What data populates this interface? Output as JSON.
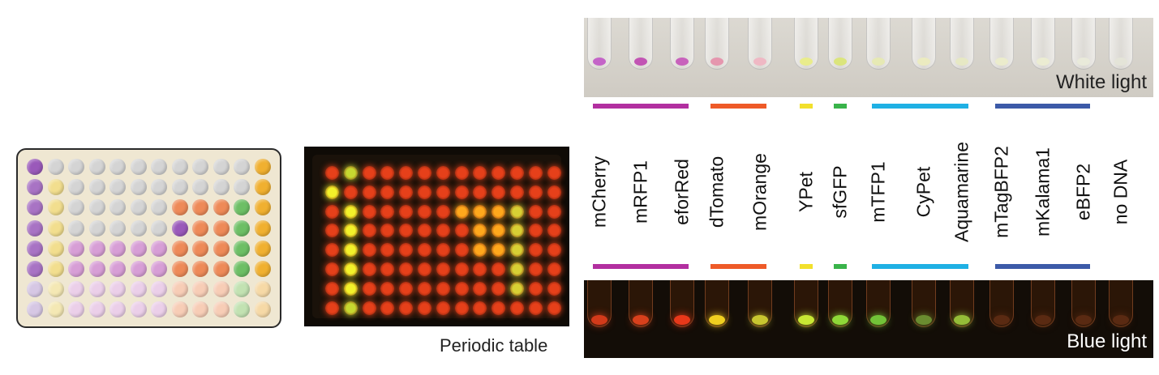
{
  "caption": "Periodic table",
  "white_light_label": "White light",
  "blue_light_label": "Blue light",
  "tubes": [
    {
      "name": "mCherry",
      "white": "#c464c8",
      "blue": "#d23a1a"
    },
    {
      "name": "mRFP1",
      "white": "#c254b4",
      "blue": "#d8401c"
    },
    {
      "name": "eforRed",
      "white": "#c862bc",
      "blue": "#e8381a"
    },
    {
      "name": "dTomato",
      "white": "#e596ae",
      "blue": "#f0d020"
    },
    {
      "name": "mOrange",
      "white": "#efb8c4",
      "blue": "#c8c630"
    },
    {
      "name": "YPet",
      "white": "#e9ec8c",
      "blue": "#c8e834"
    },
    {
      "name": "sfGFP",
      "white": "#dbe57c",
      "blue": "#8ed838"
    },
    {
      "name": "mTFP1",
      "white": "#e6e9b4",
      "blue": "#72c238"
    },
    {
      "name": "CyPet",
      "white": "#ebebc0",
      "blue": "#6a8c30"
    },
    {
      "name": "Aquamarine",
      "white": "#e6e8c4",
      "blue": "#94bc38"
    },
    {
      "name": "mTagBFP2",
      "white": "#ebeccc",
      "blue": "#5a2a12"
    },
    {
      "name": "mKalama1",
      "white": "#ebecd2",
      "blue": "#5a2a12"
    },
    {
      "name": "eBFP2",
      "white": "#e9eada",
      "blue": "#5a2a12"
    },
    {
      "name": "no DNA",
      "white": "#e4e4d8",
      "blue": "#5a2a12"
    }
  ],
  "groups": [
    {
      "color": "#b22fa0",
      "count": 3
    },
    {
      "color": "#ee5a28",
      "count": 2
    },
    {
      "color": "#f2e02c",
      "count": 1
    },
    {
      "color": "#39b34a",
      "count": 1
    },
    {
      "color": "#1fb0e4",
      "count": 3
    },
    {
      "color": "#3c5aa8",
      "count": 3
    }
  ],
  "plate_grid": [
    "ABBBBBBBBBBC",
    "DEBBBBBBBBBC",
    "DEBBBBBFFFGC",
    "DEBBBBBAFFGC",
    "DEHHHHHFFFGC",
    "DEHHHHHFFFGC",
    "IJKKKKKLLLMN",
    "IJKKKKKLLLMN"
  ],
  "plate_palette": {
    "A": "#9a59ba",
    "B": "#d4d4d4",
    "C": "#f0b030",
    "D": "#a873c4",
    "E": "#f2de8e",
    "F": "#ee8a58",
    "G": "#6dbf65",
    "H": "#d79ed6",
    "I": "#d6c7e4",
    "J": "#f4e8b4",
    "K": "#ebcfe9",
    "L": "#f7cdb6",
    "M": "#c2e2b2",
    "N": "#f6d9a6"
  },
  "photo_grid": [
    "RyRRRRRRRRRRR",
    "YRRRRRRRRRRRR",
    "RYRRRRROOOoRR",
    "RYRRRRRROOoRR",
    "RYRRRRRROOoRR",
    "RYRRRRRRRRoRR",
    "RYRRRRRRRRoRR",
    "RyRRRRRRRRRRR"
  ],
  "photo_palette": {
    "R": "#e6401a",
    "Y": "#f2f22a",
    "y": "#c6d830",
    "O": "#ffa81c",
    "o": "#d8d034"
  }
}
